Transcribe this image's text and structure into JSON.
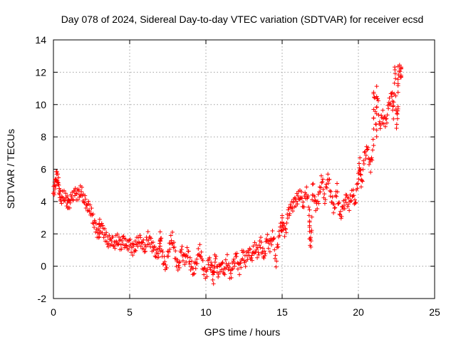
{
  "chart_data": {
    "type": "scatter",
    "title": "Day 078 of 2024, Sidereal Day-to-day VTEC variation (SDTVAR) for receiver ecsd",
    "xlabel": "GPS time / hours",
    "ylabel": "SDTVAR / TECUs",
    "xlim": [
      0,
      25
    ],
    "ylim": [
      -2,
      14
    ],
    "xticks": [
      0,
      5,
      10,
      15,
      20,
      25
    ],
    "yticks": [
      -2,
      0,
      2,
      4,
      6,
      8,
      10,
      12,
      14
    ],
    "grid": true,
    "marker": "plus",
    "color": "#ff0000",
    "series": [
      {
        "name": "SDTVAR",
        "points": [
          [
            0.0,
            4.5
          ],
          [
            0.1,
            5.0
          ],
          [
            0.2,
            5.6
          ],
          [
            0.3,
            5.4
          ],
          [
            0.4,
            4.6
          ],
          [
            0.5,
            4.2
          ],
          [
            0.7,
            4.4
          ],
          [
            0.9,
            4.0
          ],
          [
            1.0,
            3.8
          ],
          [
            1.2,
            4.2
          ],
          [
            1.4,
            4.5
          ],
          [
            1.6,
            4.4
          ],
          [
            1.8,
            4.7
          ],
          [
            2.0,
            4.2
          ],
          [
            2.2,
            3.8
          ],
          [
            2.4,
            3.6
          ],
          [
            2.6,
            2.9
          ],
          [
            2.8,
            2.3
          ],
          [
            3.0,
            1.8
          ],
          [
            3.2,
            2.3
          ],
          [
            3.4,
            1.9
          ],
          [
            3.6,
            1.5
          ],
          [
            3.8,
            1.7
          ],
          [
            4.0,
            1.4
          ],
          [
            4.2,
            1.7
          ],
          [
            4.4,
            1.3
          ],
          [
            4.6,
            1.6
          ],
          [
            4.8,
            1.2
          ],
          [
            5.0,
            1.4
          ],
          [
            5.2,
            1.0
          ],
          [
            5.4,
            1.3
          ],
          [
            5.6,
            1.7
          ],
          [
            5.8,
            1.5
          ],
          [
            6.0,
            1.1
          ],
          [
            6.2,
            1.8
          ],
          [
            6.4,
            1.4
          ],
          [
            6.6,
            1.0
          ],
          [
            6.8,
            0.6
          ],
          [
            7.0,
            1.2
          ],
          [
            7.2,
            0.4
          ],
          [
            7.4,
            0.0
          ],
          [
            7.6,
            1.3
          ],
          [
            7.8,
            1.8
          ],
          [
            8.0,
            0.6
          ],
          [
            8.2,
            -0.2
          ],
          [
            8.4,
            1.0
          ],
          [
            8.6,
            0.3
          ],
          [
            8.8,
            0.9
          ],
          [
            9.0,
            0.1
          ],
          [
            9.2,
            -0.3
          ],
          [
            9.4,
            0.4
          ],
          [
            9.6,
            1.1
          ],
          [
            9.8,
            0.0
          ],
          [
            10.0,
            -0.6
          ],
          [
            10.2,
            0.3
          ],
          [
            10.4,
            -0.2
          ],
          [
            10.6,
            0.6
          ],
          [
            10.8,
            -0.4
          ],
          [
            11.0,
            0.2
          ],
          [
            11.2,
            -0.3
          ],
          [
            11.4,
            0.4
          ],
          [
            11.6,
            -0.6
          ],
          [
            11.8,
            0.1
          ],
          [
            12.0,
            0.6
          ],
          [
            12.2,
            -0.3
          ],
          [
            12.4,
            0.8
          ],
          [
            12.6,
            0.3
          ],
          [
            12.8,
            1.0
          ],
          [
            13.0,
            0.6
          ],
          [
            13.2,
            1.2
          ],
          [
            13.4,
            0.8
          ],
          [
            13.6,
            1.5
          ],
          [
            13.8,
            0.4
          ],
          [
            14.0,
            1.7
          ],
          [
            14.2,
            1.2
          ],
          [
            14.4,
            2.0
          ],
          [
            14.6,
            0.2
          ],
          [
            14.8,
            2.2
          ],
          [
            15.0,
            2.5
          ],
          [
            15.2,
            2.0
          ],
          [
            15.4,
            3.3
          ],
          [
            15.6,
            3.6
          ],
          [
            15.8,
            3.9
          ],
          [
            16.0,
            4.2
          ],
          [
            16.2,
            4.5
          ],
          [
            16.4,
            3.8
          ],
          [
            16.6,
            4.8
          ],
          [
            16.8,
            3.2
          ],
          [
            17.0,
            5.0
          ],
          [
            17.2,
            3.6
          ],
          [
            17.4,
            4.2
          ],
          [
            17.6,
            5.5
          ],
          [
            17.8,
            4.1
          ],
          [
            18.0,
            5.7
          ],
          [
            18.2,
            4.4
          ],
          [
            18.4,
            3.5
          ],
          [
            18.6,
            4.8
          ],
          [
            18.8,
            3.0
          ],
          [
            19.0,
            3.6
          ],
          [
            19.2,
            4.2
          ],
          [
            19.4,
            3.8
          ],
          [
            19.6,
            4.6
          ],
          [
            19.8,
            4.0
          ],
          [
            20.0,
            5.6
          ],
          [
            20.1,
            6.4
          ],
          [
            20.2,
            5.0
          ],
          [
            20.4,
            6.8
          ],
          [
            20.6,
            7.2
          ],
          [
            20.8,
            6.0
          ],
          [
            21.0,
            7.8
          ],
          [
            21.2,
            8.2
          ],
          [
            21.4,
            8.7
          ],
          [
            21.6,
            9.3
          ],
          [
            21.8,
            8.8
          ],
          [
            22.0,
            10.0
          ],
          [
            22.2,
            10.6
          ],
          [
            22.3,
            9.4
          ],
          [
            22.5,
            8.8
          ],
          [
            22.6,
            9.8
          ],
          [
            22.4,
            12.5
          ],
          [
            22.6,
            12.2
          ],
          [
            22.8,
            12.0
          ],
          [
            21.0,
            11.0
          ],
          [
            21.2,
            11.1
          ],
          [
            16.8,
            1.8
          ],
          [
            16.9,
            1.3
          ],
          [
            15.0,
            2.8
          ],
          [
            3.0,
            2.6
          ],
          [
            7.0,
            1.9
          ],
          [
            10.5,
            -0.8
          ]
        ]
      }
    ]
  }
}
